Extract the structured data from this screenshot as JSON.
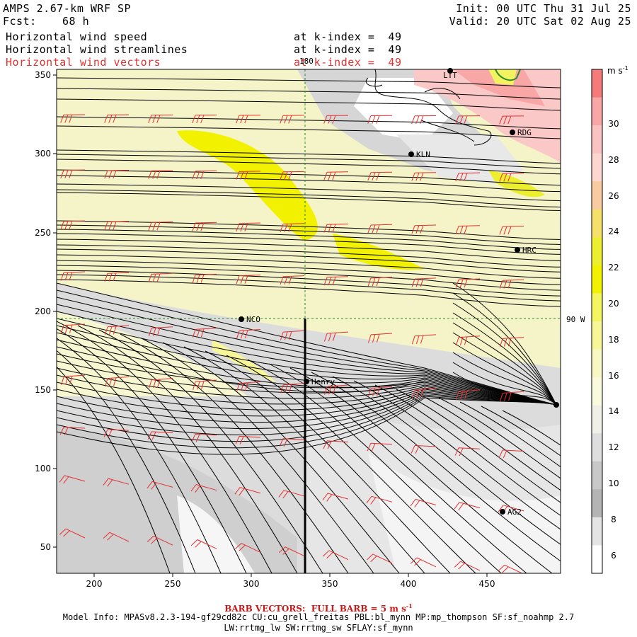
{
  "header": {
    "title_left": "AMPS 2.67-km WRF SP",
    "fcst_label": "Fcst:",
    "fcst_value": "68 h",
    "init": "Init: 00 UTC Thu 31 Jul 25",
    "valid": "Valid: 20 UTC Sat 02 Aug 25",
    "fields": [
      {
        "name": "Horizontal wind speed",
        "level": "at k-index =  49",
        "color": "#000000"
      },
      {
        "name": "Horizontal wind streamlines",
        "level": "at k-index =  49",
        "color": "#000000"
      },
      {
        "name": "Horizontal wind vectors",
        "level": "at k-index =  49",
        "color": "#e53030"
      }
    ]
  },
  "map": {
    "x_ticks": [
      "200",
      "250",
      "300",
      "350",
      "400",
      "450"
    ],
    "y_ticks": [
      "350",
      "300",
      "250",
      "200",
      "150",
      "100",
      "50"
    ],
    "meridian_label": "180",
    "longitude_label": "90 W",
    "stations": [
      {
        "id": "RDG"
      },
      {
        "id": "KLN"
      },
      {
        "id": "HRC"
      },
      {
        "id": "NCO"
      },
      {
        "id": "Henry"
      },
      {
        "id": "AG2"
      },
      {
        "id": "LTT"
      }
    ]
  },
  "colorbar": {
    "unit": "m s",
    "unit_exp": "-1",
    "labels": [
      "30",
      "28",
      "26",
      "24",
      "22",
      "20",
      "18",
      "16",
      "14",
      "12",
      "10",
      "8",
      "6"
    ],
    "colors": [
      "#f57a7a",
      "#f9a6a6",
      "#fbc2c2",
      "#fcd6cf",
      "#f8cca0",
      "#f5e06a",
      "#eeee30",
      "#f2f200",
      "#f5f560",
      "#f7f79a",
      "#f8f8c4",
      "#fafadc",
      "#f0f0e8",
      "#dedede",
      "#c8c8c8",
      "#b4b4b4",
      "#e4e4e4",
      "#ffffff"
    ]
  },
  "footer": {
    "barb_note": "BARB VECTORS:  FULL BARB = 5 m s",
    "barb_exp": "-1",
    "model_info": "Model Info: MPASv8.2.3-194-gf29cd82c CU:cu_grell_freitas PBL:bl_mynn MP:mp_thompson SF:sf_noahmp 2.7",
    "physics": "LW:rrtmg_lw SW:rrtmg_sw SFLAY:sf_mynn"
  },
  "colors": {
    "barb": "#e53030",
    "guide": "#2a8a2a",
    "streamline": "#000000"
  }
}
